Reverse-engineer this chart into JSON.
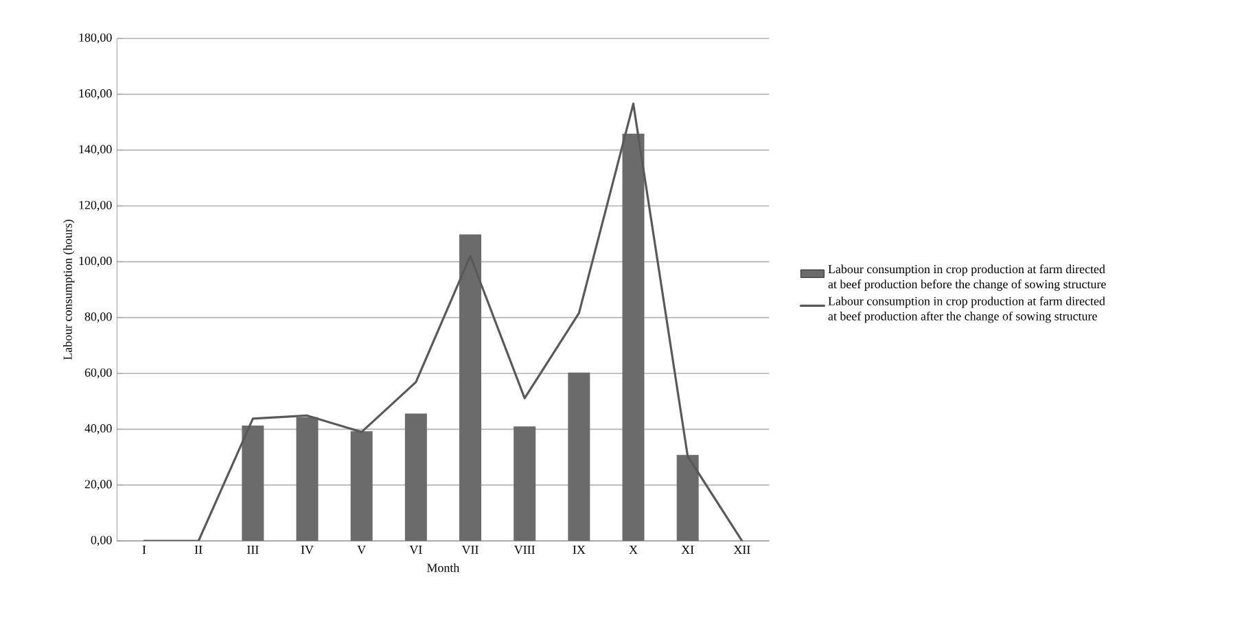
{
  "chart_data": {
    "type": "bar",
    "xlabel": "Month",
    "ylabel": "Labour consumption (hours)",
    "categories": [
      "I",
      "II",
      "III",
      "IV",
      "V",
      "VI",
      "VII",
      "VIII",
      "IX",
      "X",
      "XI",
      "XII"
    ],
    "series": [
      {
        "name": "Labour consumption in crop production at farm directed at beef production before the change of sowing structure",
        "color": "#6b6b6b",
        "values": [
          0,
          0,
          41.3,
          44.3,
          39.3,
          45.6,
          109.8,
          41,
          60.3,
          145.9,
          30.8,
          0
        ]
      },
      {
        "name": "Labour consumption in crop production at farm directed at beef production after the change of sowing structure",
        "type": "line",
        "color": "#595959",
        "values": [
          0,
          0,
          43.8,
          44.9,
          39,
          56.9,
          102.1,
          51.1,
          81.6,
          156.6,
          30.3,
          0
        ]
      }
    ],
    "ylim": [
      0,
      180
    ],
    "yticks": [
      {
        "value": 0,
        "label": "0,00"
      },
      {
        "value": 20,
        "label": "20,00"
      },
      {
        "value": 40,
        "label": "40,00"
      },
      {
        "value": 60,
        "label": "60,00"
      },
      {
        "value": 80,
        "label": "80,00"
      },
      {
        "value": 100,
        "label": "100,00"
      },
      {
        "value": 120,
        "label": "120,00"
      },
      {
        "value": 140,
        "label": "140,00"
      },
      {
        "value": 160,
        "label": "160,00"
      },
      {
        "value": 180,
        "label": "180,00"
      }
    ],
    "grid": "y",
    "legend": "right",
    "marker": "none",
    "line_style": "solid"
  }
}
